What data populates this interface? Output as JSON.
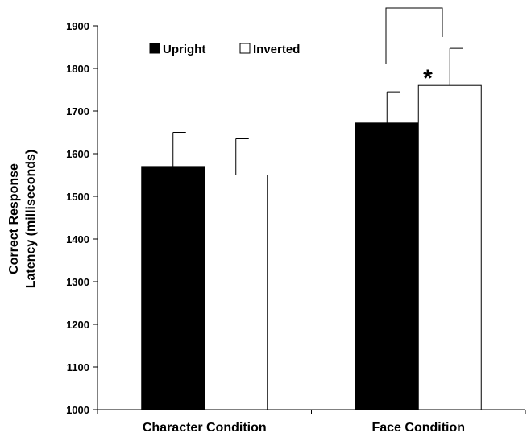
{
  "chart_data": {
    "type": "bar",
    "title": "",
    "xlabel": "",
    "ylabel_line1": "Correct Response",
    "ylabel_line2": "Latency (milliseconds)",
    "ylim": [
      1000,
      1900
    ],
    "yticks": [
      "1000",
      "1100",
      "1200",
      "1300",
      "1400",
      "1500",
      "1600",
      "1700",
      "1800",
      "1900"
    ],
    "categories": [
      "Character Condition",
      "Face Condition"
    ],
    "series": [
      {
        "name": "Upright",
        "color": "#000000",
        "values": [
          1570,
          1672
        ],
        "error": [
          80,
          73
        ]
      },
      {
        "name": "Inverted",
        "color": "#ffffff",
        "values": [
          1550,
          1760
        ],
        "error": [
          85,
          87
        ]
      }
    ],
    "legend": {
      "position": "top-left",
      "items": [
        "Upright",
        "Inverted"
      ]
    },
    "annotations": {
      "significance": "*",
      "bracket": "Face Condition Upright vs Inverted"
    },
    "grid": false
  }
}
